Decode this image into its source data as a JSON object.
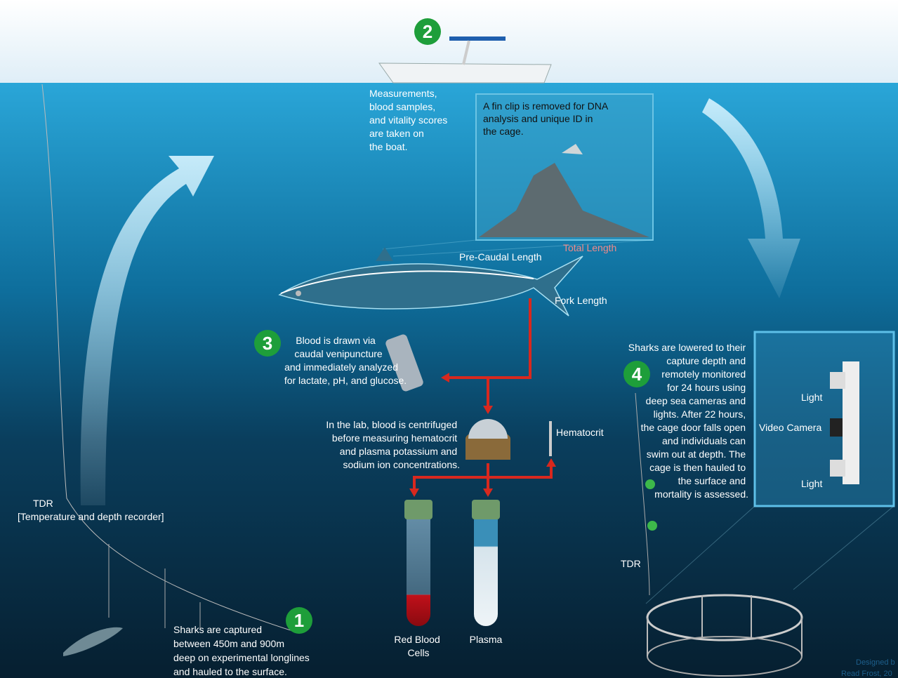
{
  "steps": [
    "1",
    "2",
    "3",
    "4"
  ],
  "boat_note": {
    "lines": [
      "Measurements,",
      "blood samples,",
      "and vitality scores",
      "are taken on",
      "the boat."
    ]
  },
  "fin_note": {
    "lines": [
      "A fin clip is removed for DNA",
      "analysis and unique ID in",
      "the cage."
    ]
  },
  "shark_labels": {
    "pre_caudal": "Pre-Caudal Length",
    "total": "Total Length",
    "fork": "Fork Length"
  },
  "blood_note": {
    "lines": [
      "Blood is drawn via",
      "caudal venipuncture",
      "and immediately analyzed",
      "for lactate, pH, and glucose."
    ]
  },
  "lab_note": {
    "lines": [
      "In the lab, blood is centrifuged",
      "before measuring hematocrit",
      "and plasma potassium and",
      "sodium ion concentrations."
    ]
  },
  "hematocrit": "Hematocrit",
  "tubes": [
    {
      "lines": [
        "Red Blood",
        "Cells"
      ]
    },
    {
      "lines": [
        "Plasma"
      ]
    }
  ],
  "cage_note": {
    "lines": [
      "Sharks are lowered to their",
      "capture depth and",
      "remotely monitored",
      "for 24 hours using",
      "deep sea cameras and",
      "lights. After 22 hours,",
      "the cage door falls open",
      "and individuals can",
      "swim out at depth. The",
      "cage is then hauled to",
      "the surface and",
      "mortality is assessed."
    ]
  },
  "rig_labels": [
    "Light",
    "Video Camera",
    "Light"
  ],
  "tdr_left": {
    "lines": [
      "TDR",
      "[Temperature and depth recorder]"
    ]
  },
  "tdr_right": "TDR",
  "capture_note": {
    "lines": [
      "Sharks are captured",
      "between 450m and 900m",
      "deep on experimental longlines",
      "and hauled to the surface."
    ]
  },
  "credit": {
    "lines": [
      "Designed b",
      "Read Frost, 20"
    ]
  }
}
